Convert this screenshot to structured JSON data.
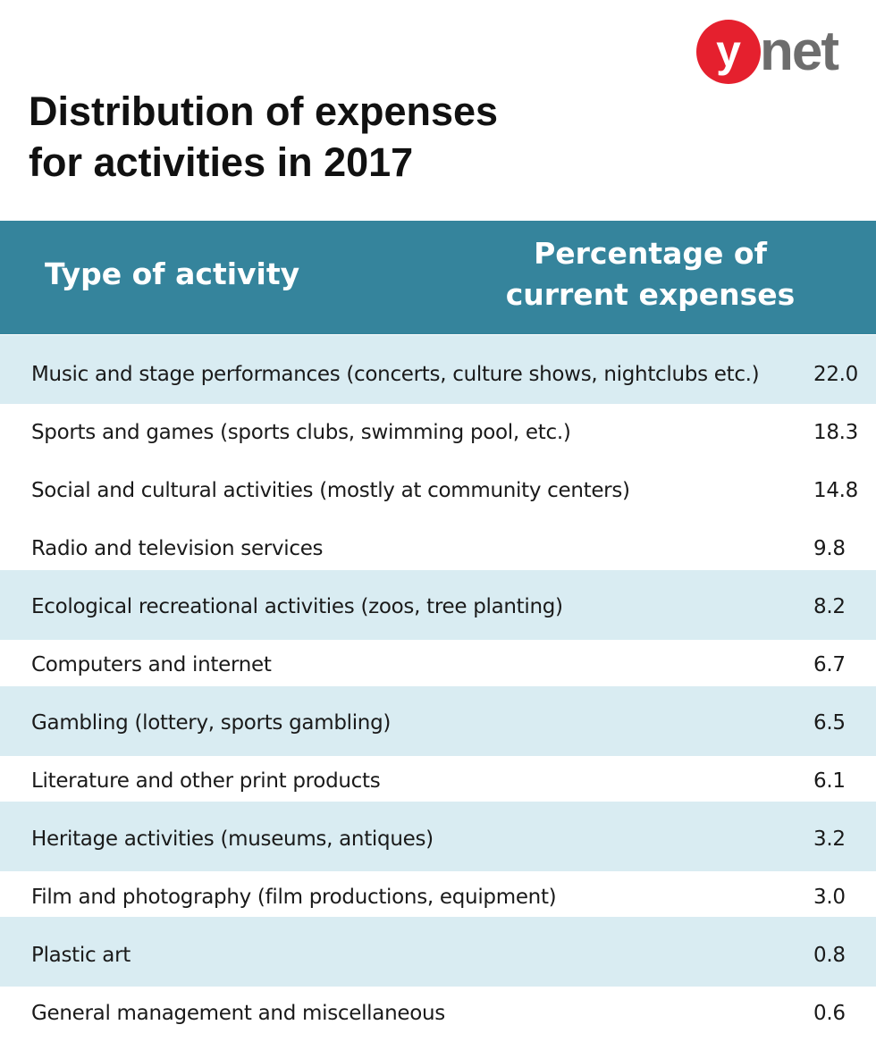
{
  "logo": {
    "mark": "y",
    "text": "net"
  },
  "header": {
    "title_lines": [
      "Distribution of expenses",
      "for activities in 2017"
    ]
  },
  "table": {
    "columns": [
      "Type of activity",
      [
        "Percentage of",
        "current expenses"
      ]
    ],
    "rows": [
      [
        "Music and stage performances (concerts, culture shows, nightclubs etc.)",
        "22.0"
      ],
      [
        "Sports and games (sports clubs, swimming pool, etc.)",
        "18.3"
      ],
      [
        "Social and cultural activities (mostly at community centers)",
        "14.8"
      ],
      [
        "Radio and television services",
        "9.8"
      ],
      [
        "Ecological recreational activities (zoos, tree planting)",
        "8.2"
      ],
      [
        "Computers and internet",
        "6.7"
      ],
      [
        "Gambling (lottery, sports gambling)",
        "6.5"
      ],
      [
        "Literature and other print products",
        "6.1"
      ],
      [
        "Heritage activities (museums, antiques)",
        "3.2"
      ],
      [
        "Film and photography (film productions, equipment)",
        "3.0"
      ],
      [
        "Plastic art",
        "0.8"
      ],
      [
        "General management and miscellaneous",
        "0.6"
      ]
    ]
  }
}
